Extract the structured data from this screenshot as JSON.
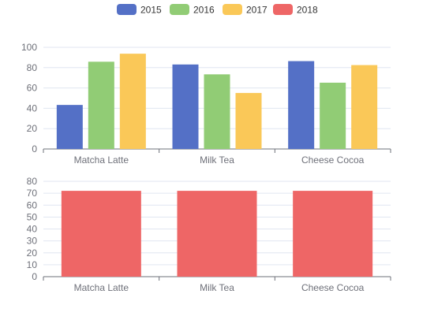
{
  "legend": {
    "items": [
      {
        "label": "2015",
        "color": "#5470c6"
      },
      {
        "label": "2016",
        "color": "#91cc75"
      },
      {
        "label": "2017",
        "color": "#fac858"
      },
      {
        "label": "2018",
        "color": "#ee6666"
      }
    ]
  },
  "chart_data": [
    {
      "type": "bar",
      "title": "",
      "xlabel": "",
      "ylabel": "",
      "categories": [
        "Matcha Latte",
        "Milk Tea",
        "Cheese Cocoa"
      ],
      "series": [
        {
          "name": "2015",
          "color": "#5470c6",
          "values": [
            43.3,
            83.1,
            86.4
          ]
        },
        {
          "name": "2016",
          "color": "#91cc75",
          "values": [
            85.8,
            73.4,
            65.2
          ]
        },
        {
          "name": "2017",
          "color": "#fac858",
          "values": [
            93.7,
            55.1,
            82.5
          ]
        }
      ],
      "ylim": [
        0,
        100
      ],
      "yticks": [
        0,
        20,
        40,
        60,
        80,
        100
      ],
      "grid": true
    },
    {
      "type": "bar",
      "title": "",
      "xlabel": "",
      "ylabel": "",
      "categories": [
        "Matcha Latte",
        "Milk Tea",
        "Cheese Cocoa"
      ],
      "series": [
        {
          "name": "2018",
          "color": "#ee6666",
          "values": [
            72,
            72,
            72
          ]
        }
      ],
      "ylim": [
        0,
        80
      ],
      "yticks": [
        0,
        10,
        20,
        30,
        40,
        50,
        60,
        70,
        80
      ],
      "grid": true
    }
  ]
}
